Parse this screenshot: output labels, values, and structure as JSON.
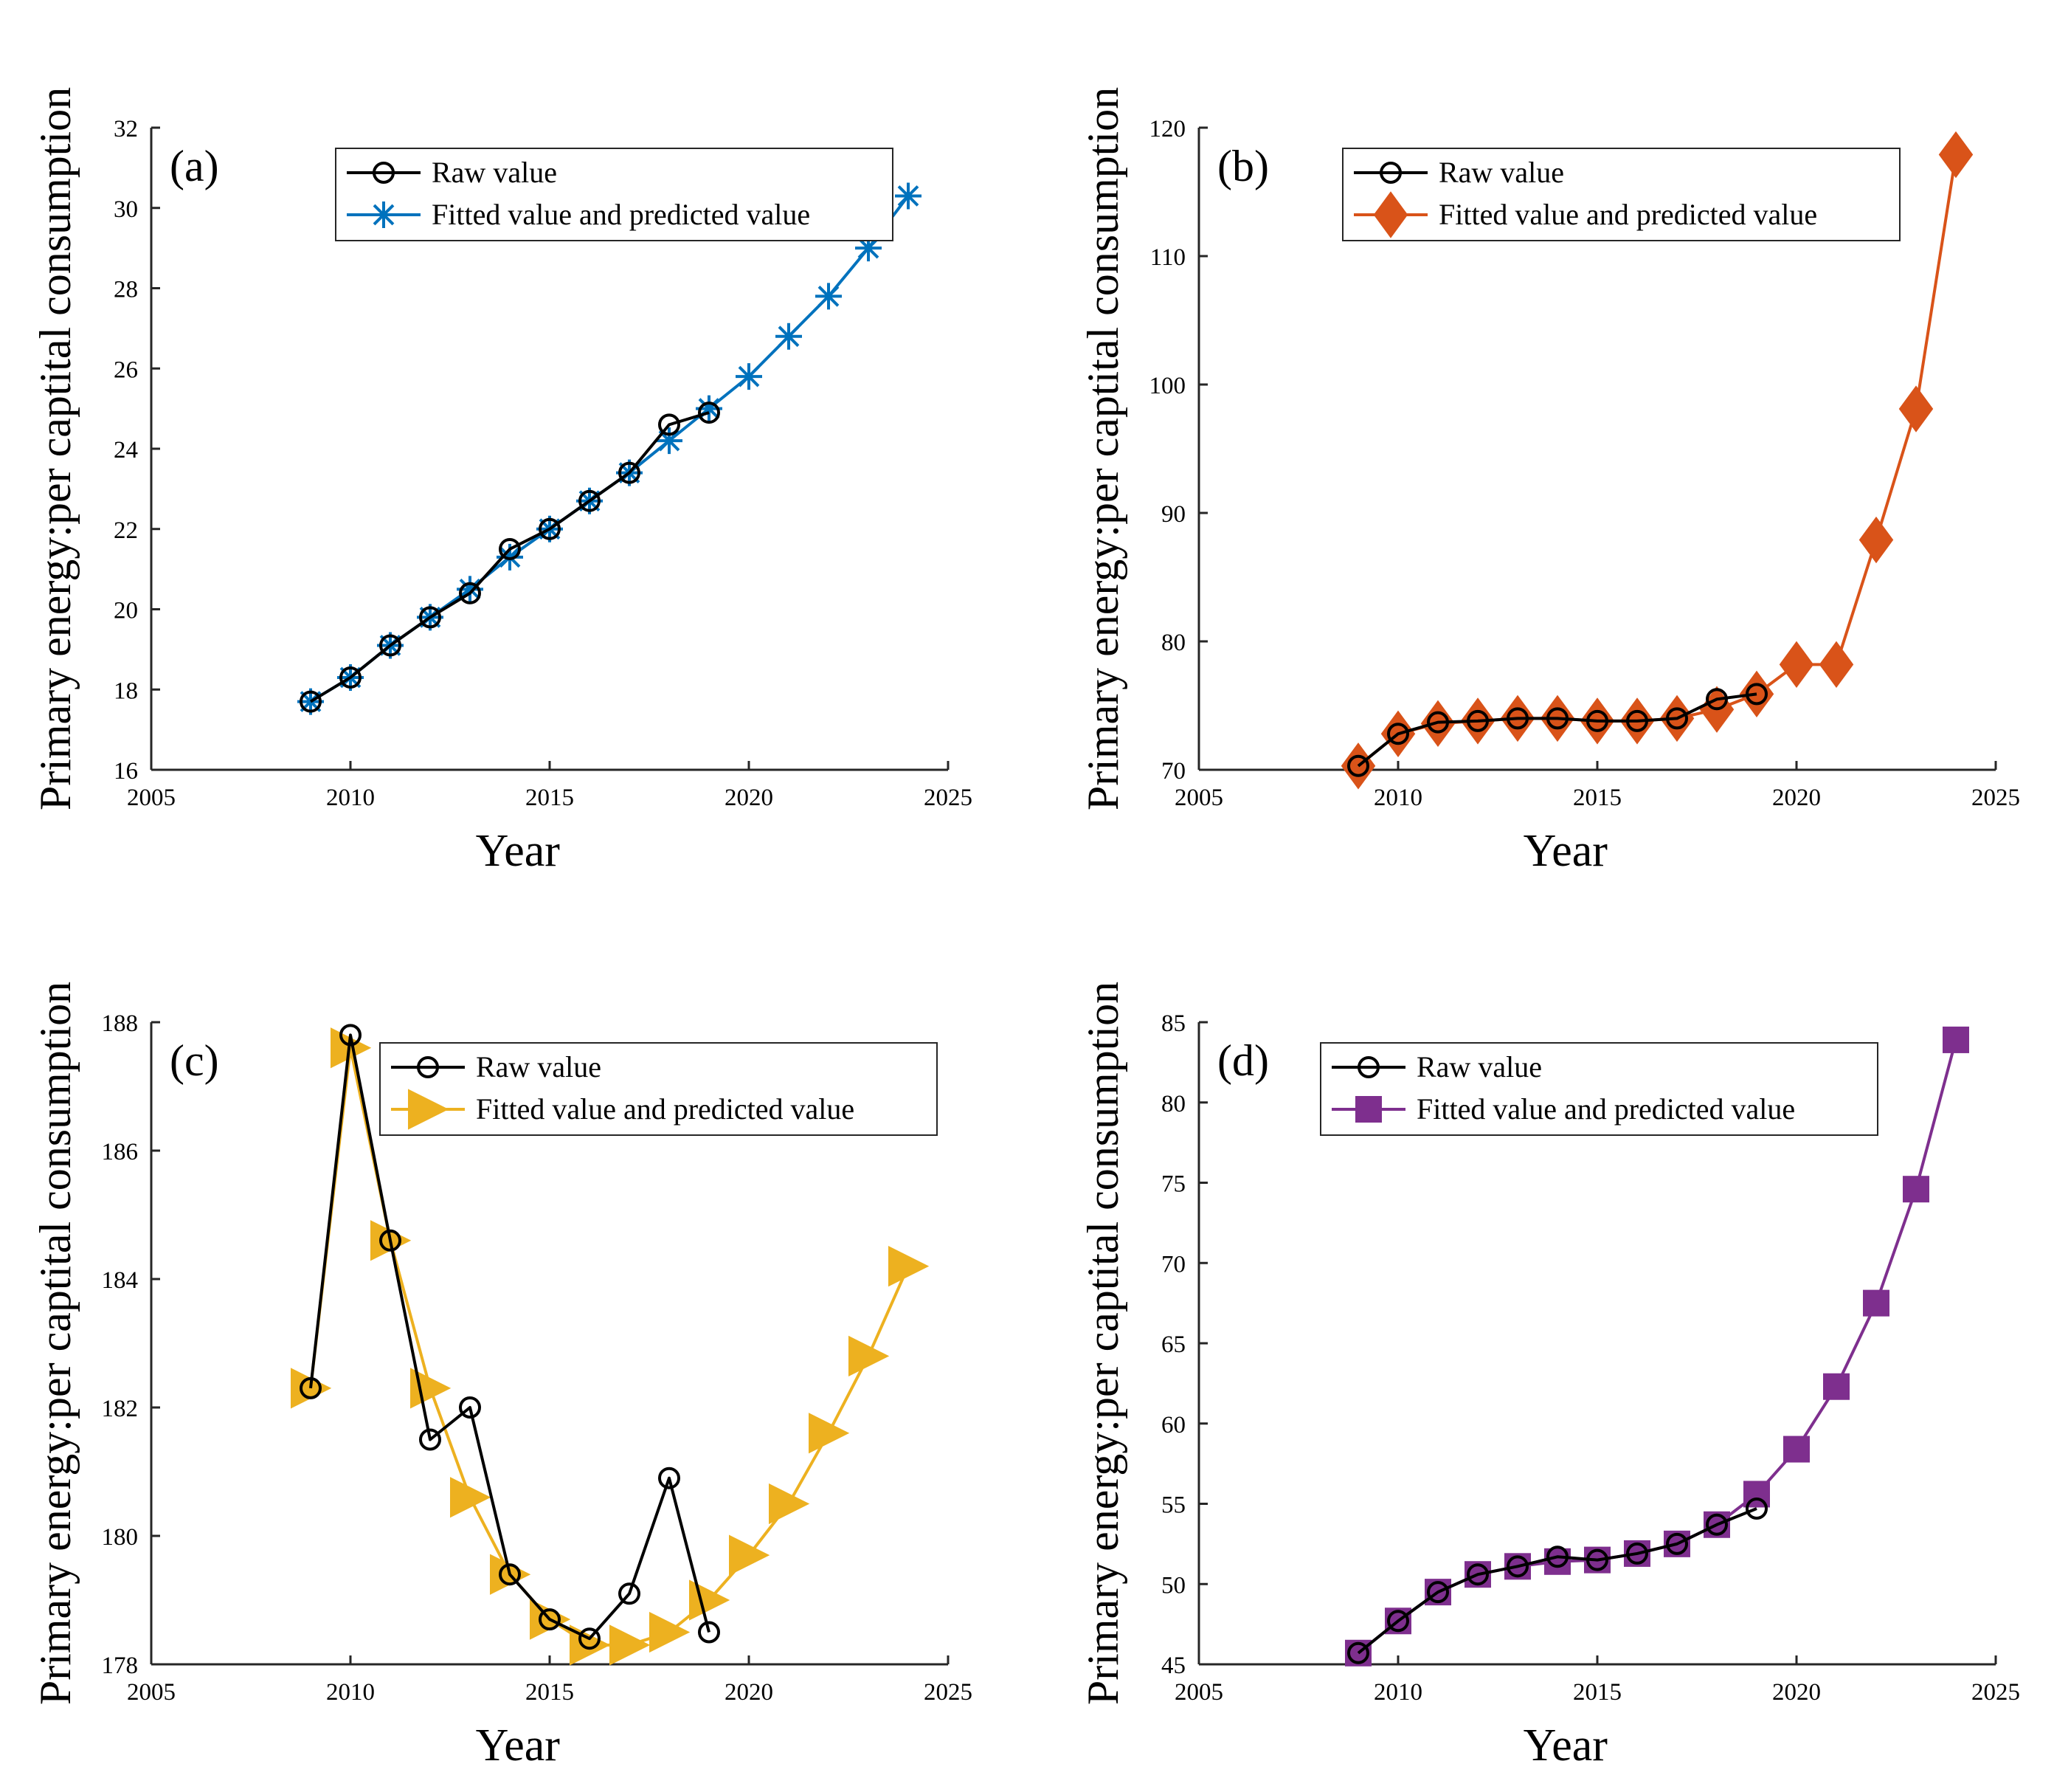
{
  "chart_data": [
    {
      "type": "line",
      "panel_label": "(a)",
      "xlabel": "Year",
      "ylabel": "Primary energy:per captital consumption",
      "xlim": [
        2005,
        2025
      ],
      "ylim": [
        16,
        32
      ],
      "xticks": [
        2005,
        2010,
        2015,
        2020,
        2025
      ],
      "yticks": [
        16,
        18,
        20,
        22,
        24,
        26,
        28,
        30,
        32
      ],
      "legend_location": "top-right",
      "series": [
        {
          "name": "Raw value",
          "color": "#000000",
          "marker": "circle",
          "x": [
            2009,
            2010,
            2011,
            2012,
            2013,
            2014,
            2015,
            2016,
            2017,
            2018,
            2019
          ],
          "y": [
            17.7,
            18.3,
            19.1,
            19.8,
            20.4,
            21.5,
            22.0,
            22.7,
            23.4,
            24.6,
            24.9
          ]
        },
        {
          "name": "Fitted value and predicted value",
          "color": "#0072BD",
          "marker": "asterisk",
          "x": [
            2009,
            2010,
            2011,
            2012,
            2013,
            2014,
            2015,
            2016,
            2017,
            2018,
            2019,
            2020,
            2021,
            2022,
            2023,
            2024
          ],
          "y": [
            17.7,
            18.3,
            19.1,
            19.8,
            20.5,
            21.3,
            22.0,
            22.7,
            23.4,
            24.2,
            25.0,
            25.8,
            26.8,
            27.8,
            29.0,
            30.3
          ]
        }
      ]
    },
    {
      "type": "line",
      "panel_label": "(b)",
      "xlabel": "Year",
      "ylabel": "Primary energy:per captital consumption",
      "xlim": [
        2005,
        2025
      ],
      "ylim": [
        70,
        120
      ],
      "xticks": [
        2005,
        2010,
        2015,
        2020,
        2025
      ],
      "yticks": [
        70,
        80,
        90,
        100,
        110,
        120
      ],
      "legend_location": "top-right",
      "series": [
        {
          "name": "Raw value",
          "color": "#000000",
          "marker": "circle",
          "x": [
            2009,
            2010,
            2011,
            2012,
            2013,
            2014,
            2015,
            2016,
            2017,
            2018,
            2019
          ],
          "y": [
            70.3,
            72.8,
            73.7,
            73.8,
            74.0,
            74.0,
            73.8,
            73.8,
            74.0,
            75.5,
            75.9
          ]
        },
        {
          "name": "Fitted value and predicted value",
          "color": "#D95319",
          "marker": "diamond",
          "x": [
            2009,
            2010,
            2011,
            2012,
            2013,
            2014,
            2015,
            2016,
            2017,
            2018,
            2019,
            2020,
            2021,
            2022,
            2023,
            2024
          ],
          "y": [
            70.3,
            72.8,
            73.6,
            73.8,
            74.0,
            74.0,
            73.8,
            73.8,
            74.0,
            74.7,
            75.9,
            78.2,
            78.2,
            87.9,
            98.1,
            117.9
          ]
        }
      ]
    },
    {
      "type": "line",
      "panel_label": "(c)",
      "xlabel": "Year",
      "ylabel": "Primary energy:per captital consumption",
      "xlim": [
        2005,
        2025
      ],
      "ylim": [
        178,
        188
      ],
      "xticks": [
        2005,
        2010,
        2015,
        2020,
        2025
      ],
      "yticks": [
        178,
        180,
        182,
        184,
        186,
        188
      ],
      "legend_location": "top-right",
      "series": [
        {
          "name": "Raw value",
          "color": "#000000",
          "marker": "circle",
          "x": [
            2009,
            2010,
            2011,
            2012,
            2013,
            2014,
            2015,
            2016,
            2017,
            2018,
            2019
          ],
          "y": [
            182.3,
            187.8,
            184.6,
            181.5,
            182.0,
            179.4,
            178.7,
            178.4,
            179.1,
            180.9,
            178.5
          ]
        },
        {
          "name": "Fitted value and predicted value",
          "color": "#EDB120",
          "marker": "triangle-right",
          "x": [
            2009,
            2010,
            2011,
            2012,
            2013,
            2014,
            2015,
            2016,
            2017,
            2018,
            2019,
            2020,
            2021,
            2022,
            2023,
            2024
          ],
          "y": [
            182.3,
            187.6,
            184.6,
            182.3,
            180.6,
            179.4,
            178.7,
            178.3,
            178.3,
            178.5,
            179.0,
            179.7,
            180.5,
            181.6,
            182.8,
            184.2
          ]
        }
      ]
    },
    {
      "type": "line",
      "panel_label": "(d)",
      "xlabel": "Year",
      "ylabel": "Primary energy:per captital consumption",
      "xlim": [
        2005,
        2025
      ],
      "ylim": [
        45,
        85
      ],
      "xticks": [
        2005,
        2010,
        2015,
        2020,
        2025
      ],
      "yticks": [
        45,
        50,
        55,
        60,
        65,
        70,
        75,
        80,
        85
      ],
      "legend_location": "top-right",
      "series": [
        {
          "name": "Raw value",
          "color": "#000000",
          "marker": "circle",
          "x": [
            2009,
            2010,
            2011,
            2012,
            2013,
            2014,
            2015,
            2016,
            2017,
            2018,
            2019
          ],
          "y": [
            45.7,
            47.7,
            49.5,
            50.6,
            51.1,
            51.7,
            51.5,
            51.9,
            52.5,
            53.7,
            54.7
          ]
        },
        {
          "name": "Fitted value and predicted value",
          "color": "#7E2F8E",
          "marker": "square",
          "x": [
            2009,
            2010,
            2011,
            2012,
            2013,
            2014,
            2015,
            2016,
            2017,
            2018,
            2019,
            2020,
            2021,
            2022,
            2023,
            2024
          ],
          "y": [
            45.7,
            47.7,
            49.5,
            50.6,
            51.1,
            51.4,
            51.5,
            51.9,
            52.5,
            53.7,
            55.6,
            58.4,
            62.3,
            67.5,
            74.6,
            83.9
          ]
        }
      ]
    }
  ]
}
